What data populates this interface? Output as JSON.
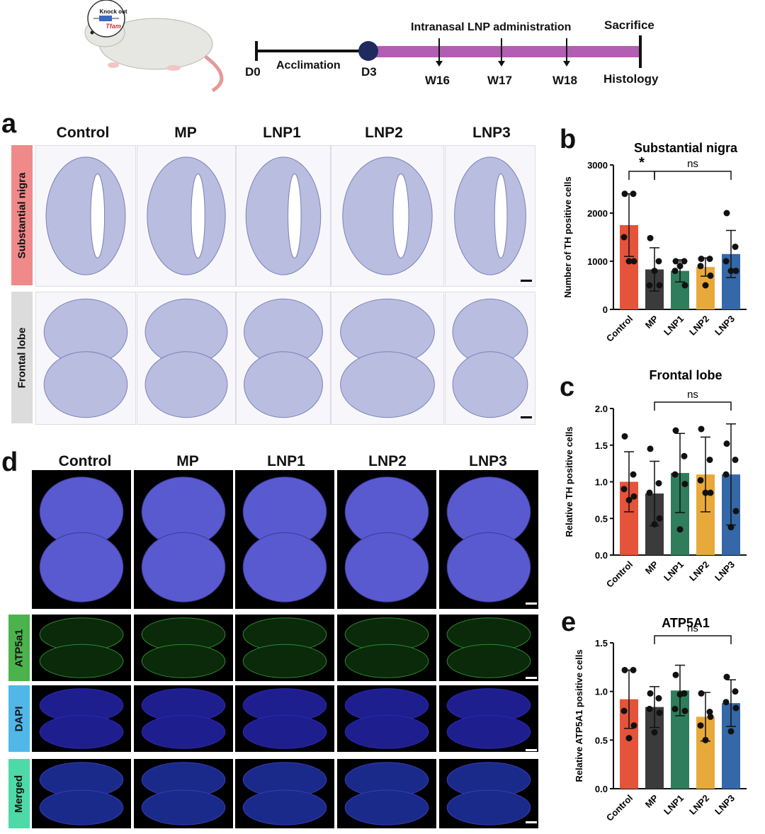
{
  "timeline": {
    "mouse_label_top": "Knock out",
    "mouse_label_gene": "Tfam",
    "d0": "D0",
    "acclimation": "Acclimation",
    "d3": "D3",
    "intranasal": "Intranasal LNP administration",
    "sacrifice": "Sacrifice",
    "w16": "W16",
    "w17": "W17",
    "w18": "W18",
    "histology": "Histology"
  },
  "panel_a": {
    "letter": "a",
    "columns": [
      "Control",
      "MP",
      "LNP1",
      "LNP2",
      "LNP3"
    ],
    "rows": [
      "Substantial nigra",
      "Frontal lobe"
    ]
  },
  "panel_d": {
    "letter": "d",
    "columns": [
      "Control",
      "MP",
      "LNP1",
      "LNP2",
      "LNP3"
    ],
    "rows": [
      "ATP5a1",
      "DAPI",
      "Merged"
    ]
  },
  "colors": {
    "control": "#e5533a",
    "mp": "#3b3b3b",
    "lnp1": "#2f7d5a",
    "lnp2": "#e8a93b",
    "lnp3": "#3568a8",
    "timeline_bar": "#b25eb2",
    "d3_dot": "#1f2b5e",
    "tab_sn": "#f08a8a",
    "tab_fl": "#dcdcdc",
    "tab_atp": "#4bb34b",
    "tab_dapi": "#4fb8e8",
    "tab_merged": "#4dd9a8"
  },
  "chart_data": [
    {
      "panel": "b",
      "type": "bar",
      "title": "Substantial nigra",
      "ylabel": "Number of TH positive cells",
      "categories": [
        "Control",
        "MP",
        "LNP1",
        "LNP2",
        "LNP3"
      ],
      "values": [
        1750,
        830,
        800,
        880,
        1150
      ],
      "errors": [
        650,
        450,
        230,
        190,
        490
      ],
      "points": [
        [
          2400,
          2400,
          1500,
          1000,
          1000
        ],
        [
          1480,
          1000,
          500,
          500,
          800
        ],
        [
          1000,
          1000,
          800,
          500,
          900
        ],
        [
          1050,
          1050,
          900,
          700,
          500
        ],
        [
          2000,
          1300,
          1000,
          800,
          800
        ]
      ],
      "ylim": [
        0,
        3000
      ],
      "yticks": [
        "0",
        "1000",
        "2000",
        "3000"
      ],
      "sig": [
        {
          "from": 0,
          "to": 1,
          "label": "*"
        },
        {
          "from": 1,
          "to": 4,
          "label": "ns"
        }
      ]
    },
    {
      "panel": "c",
      "type": "bar",
      "title": "Frontal lobe",
      "ylabel": "Relative TH positive cells",
      "categories": [
        "Control",
        "MP",
        "LNP1",
        "LNP2",
        "LNP3"
      ],
      "values": [
        1.0,
        0.84,
        1.12,
        1.1,
        1.1
      ],
      "errors": [
        0.41,
        0.44,
        0.54,
        0.51,
        0.69
      ],
      "points": [
        [
          1.62,
          1.1,
          0.9,
          0.8,
          0.75
        ],
        [
          1.45,
          0.98,
          0.85,
          0.5,
          0.42
        ],
        [
          1.7,
          1.35,
          1.1,
          0.97,
          0.35
        ],
        [
          1.72,
          1.3,
          1.02,
          0.85,
          0.85
        ],
        [
          1.52,
          1.3,
          1.1,
          0.6,
          0.38
        ]
      ],
      "ylim": [
        0,
        2.0
      ],
      "yticks": [
        "0.0",
        "0.5",
        "1.0",
        "1.5",
        "2.0"
      ],
      "sig": [
        {
          "from": 1,
          "to": 4,
          "label": "ns"
        }
      ]
    },
    {
      "panel": "e",
      "type": "bar",
      "title": "ATP5A1",
      "ylabel": "Relative ATP5A1 positive cells",
      "categories": [
        "Control",
        "MP",
        "LNP1",
        "LNP2",
        "LNP3"
      ],
      "values": [
        0.92,
        0.84,
        1.01,
        0.74,
        0.88
      ],
      "errors": [
        0.3,
        0.21,
        0.26,
        0.25,
        0.24
      ],
      "points": [
        [
          1.22,
          1.22,
          0.8,
          0.65,
          0.52
        ],
        [
          0.98,
          0.93,
          0.82,
          0.78,
          0.58
        ],
        [
          1.17,
          0.98,
          0.82,
          0.8,
          0.97
        ],
        [
          0.98,
          0.79,
          0.65,
          0.74,
          0.5
        ],
        [
          1.15,
          1.0,
          0.89,
          0.83,
          0.59
        ]
      ],
      "ylim": [
        0,
        1.5
      ],
      "yticks": [
        "0.0",
        "0.5",
        "1.0",
        "1.5"
      ],
      "sig": [
        {
          "from": 1,
          "to": 4,
          "label": "ns"
        }
      ]
    }
  ]
}
